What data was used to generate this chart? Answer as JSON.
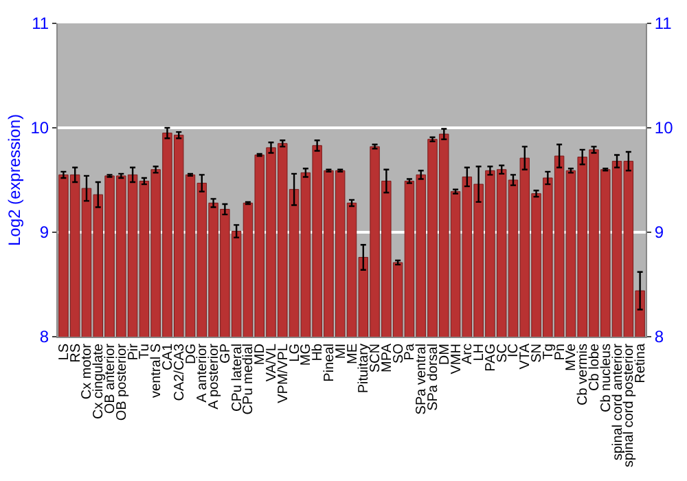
{
  "chart_data": {
    "type": "bar",
    "ylabel": "Log2 (expression)",
    "categories": [
      "LS",
      "RS",
      "Cx motor",
      "Cx cingulate",
      "OB anterior",
      "OB posterior",
      "Pir",
      "Tu",
      "ventral S",
      "CA1",
      "CA2/CA3",
      "DG",
      "A anterior",
      "A posterior",
      "GP",
      "CPu lateral",
      "CPu medial",
      "MD",
      "VA/VL",
      "VPM/VPL",
      "LG",
      "MG",
      "Hb",
      "Pineal",
      "MI",
      "ME",
      "Pituitary",
      "SCN",
      "MPA",
      "SO",
      "Pa",
      "SPa ventral",
      "SPa dorsal",
      "DM",
      "VMH",
      "Arc",
      "LH",
      "PAG",
      "SC",
      "IC",
      "VTA",
      "SN",
      "Tg",
      "Pn",
      "MVe",
      "Cb vermis",
      "Cb lobe",
      "Cb nucleus",
      "spinal cord anterior",
      "spinal cord posterior",
      "Retina"
    ],
    "values": [
      9.55,
      9.55,
      9.42,
      9.36,
      9.54,
      9.54,
      9.55,
      9.49,
      9.6,
      9.95,
      9.93,
      9.55,
      9.47,
      9.28,
      9.22,
      9.01,
      9.28,
      9.74,
      9.81,
      9.85,
      9.41,
      9.57,
      9.83,
      9.59,
      9.59,
      9.28,
      8.76,
      9.82,
      9.49,
      8.71,
      9.49,
      9.55,
      9.89,
      9.94,
      9.39,
      9.53,
      9.46,
      9.59,
      9.6,
      9.5,
      9.71,
      9.37,
      9.52,
      9.73,
      9.59,
      9.72,
      9.79,
      9.6,
      9.68,
      9.68,
      8.44
    ],
    "errors": [
      0.03,
      0.07,
      0.12,
      0.12,
      0.01,
      0.02,
      0.07,
      0.03,
      0.03,
      0.05,
      0.03,
      0.01,
      0.08,
      0.04,
      0.05,
      0.06,
      0.01,
      0.01,
      0.05,
      0.03,
      0.15,
      0.04,
      0.05,
      0.01,
      0.01,
      0.03,
      0.12,
      0.02,
      0.11,
      0.02,
      0.02,
      0.04,
      0.02,
      0.05,
      0.02,
      0.09,
      0.17,
      0.04,
      0.04,
      0.05,
      0.11,
      0.03,
      0.06,
      0.11,
      0.02,
      0.07,
      0.03,
      0.01,
      0.06,
      0.09,
      0.18
    ],
    "color": "#b83232",
    "ylim": [
      8,
      11
    ],
    "yticks": [
      8,
      9,
      10,
      11
    ],
    "y2lim": [
      8,
      11
    ],
    "y2ticks": [
      8,
      9,
      10,
      11
    ],
    "grid": "y",
    "legend": false
  }
}
